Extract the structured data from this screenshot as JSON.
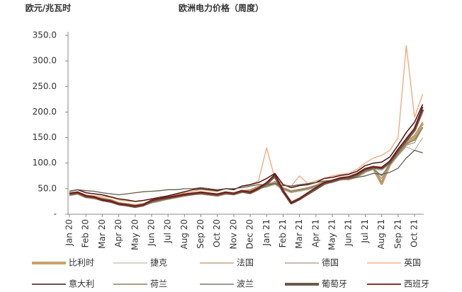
{
  "chart_data": {
    "type": "line",
    "title": "欧洲电力价格（周度）",
    "y_label": "欧元/兆瓦时",
    "categories": [
      "Jan 20",
      null,
      "Feb 20",
      null,
      "Mar 20",
      null,
      "Apr 20",
      null,
      "May 20",
      null,
      "Jun 20",
      null,
      "Jul 20",
      null,
      "Aug 20",
      null,
      "Sep 20",
      null,
      "Oct 20",
      null,
      "Nov 20",
      null,
      "Dec 20",
      null,
      "Jan 21",
      null,
      "Feb 21",
      null,
      "Mar 21",
      null,
      "Apr 21",
      null,
      "May 21",
      null,
      "Jun 21",
      null,
      "Jul 21",
      null,
      "Aug 21",
      null,
      "Sep 21",
      null,
      "Oct 21",
      null
    ],
    "ylim": [
      0,
      350
    ],
    "yticks": [
      {
        "value": 0,
        "label": "-"
      },
      {
        "value": 50,
        "label": "50.0"
      },
      {
        "value": 100,
        "label": "100.0"
      },
      {
        "value": 150,
        "label": "150.0"
      },
      {
        "value": 200,
        "label": "200.0"
      },
      {
        "value": 250,
        "label": "250.0"
      },
      {
        "value": 300,
        "label": "300.0"
      },
      {
        "value": 350,
        "label": "350.0"
      }
    ],
    "grid": false,
    "legend": "bottom",
    "series": [
      {
        "name": "比利时",
        "color": "#c9a26a",
        "width": 4,
        "values": [
          38,
          41,
          34,
          32,
          30,
          27,
          21,
          19,
          17,
          19,
          24,
          28,
          31,
          34,
          37,
          40,
          41,
          39,
          37,
          41,
          40,
          44,
          46,
          52,
          56,
          62,
          50,
          44,
          47,
          50,
          54,
          61,
          64,
          70,
          69,
          74,
          84,
          90,
          60,
          98,
          118,
          138,
          150,
          178
        ]
      },
      {
        "name": "捷克",
        "color": "#bdbdae",
        "width": 1.3,
        "values": [
          36,
          40,
          33,
          31,
          28,
          26,
          20,
          18,
          16,
          18,
          23,
          26,
          30,
          33,
          36,
          39,
          40,
          38,
          36,
          40,
          38,
          43,
          44,
          50,
          53,
          58,
          48,
          43,
          46,
          48,
          53,
          60,
          62,
          68,
          68,
          73,
          82,
          88,
          86,
          97,
          115,
          132,
          125,
          150
        ]
      },
      {
        "name": "法国",
        "color": "#b8906e",
        "width": 1.3,
        "values": [
          40,
          43,
          36,
          34,
          31,
          29,
          22,
          20,
          17,
          20,
          26,
          29,
          33,
          36,
          39,
          42,
          43,
          41,
          39,
          43,
          41,
          46,
          48,
          55,
          58,
          64,
          52,
          46,
          49,
          52,
          57,
          64,
          67,
          72,
          72,
          77,
          87,
          92,
          60,
          102,
          122,
          142,
          155,
          180
        ]
      },
      {
        "name": "德国",
        "color": "#a59586",
        "width": 1.3,
        "values": [
          37,
          40,
          33,
          31,
          28,
          26,
          19,
          17,
          15,
          17,
          22,
          25,
          30,
          33,
          36,
          38,
          40,
          38,
          36,
          40,
          39,
          44,
          45,
          50,
          54,
          60,
          50,
          45,
          47,
          50,
          54,
          60,
          62,
          67,
          68,
          73,
          82,
          88,
          70,
          95,
          115,
          135,
          140,
          170
        ]
      },
      {
        "name": "英国",
        "color": "#f2a673",
        "width": 1.3,
        "values": [
          40,
          44,
          38,
          36,
          35,
          33,
          28,
          26,
          25,
          27,
          30,
          33,
          35,
          38,
          42,
          45,
          48,
          46,
          44,
          50,
          48,
          55,
          58,
          65,
          130,
          70,
          58,
          55,
          75,
          60,
          65,
          70,
          75,
          78,
          80,
          88,
          100,
          110,
          115,
          125,
          150,
          330,
          190,
          235
        ]
      },
      {
        "name": "意大利",
        "color": "#4a1414",
        "width": 1.5,
        "values": [
          45,
          48,
          42,
          40,
          38,
          34,
          30,
          28,
          25,
          27,
          30,
          33,
          36,
          40,
          44,
          48,
          50,
          48,
          46,
          50,
          48,
          55,
          58,
          62,
          70,
          80,
          58,
          52,
          56,
          58,
          62,
          70,
          72,
          76,
          78,
          84,
          95,
          100,
          102,
          112,
          135,
          160,
          180,
          215
        ]
      },
      {
        "name": "荷兰",
        "color": "#84845a",
        "width": 1.5,
        "values": [
          38,
          41,
          34,
          32,
          30,
          27,
          21,
          19,
          17,
          19,
          24,
          27,
          31,
          34,
          37,
          40,
          41,
          39,
          37,
          41,
          40,
          44,
          45,
          51,
          55,
          60,
          50,
          44,
          47,
          50,
          55,
          62,
          64,
          70,
          69,
          74,
          84,
          89,
          75,
          98,
          118,
          138,
          145,
          170
        ]
      },
      {
        "name": "波兰",
        "color": "#5f5f52",
        "width": 1.3,
        "values": [
          45,
          48,
          46,
          45,
          42,
          40,
          38,
          40,
          42,
          44,
          45,
          46,
          48,
          48,
          50,
          50,
          52,
          50,
          48,
          50,
          50,
          52,
          55,
          58,
          58,
          60,
          56,
          55,
          58,
          60,
          62,
          65,
          66,
          68,
          70,
          72,
          75,
          80,
          78,
          82,
          90,
          110,
          125,
          120
        ]
      },
      {
        "name": "葡萄牙",
        "color": "#6b5a48",
        "width": 4,
        "values": [
          40,
          42,
          35,
          33,
          28,
          25,
          20,
          18,
          15,
          18,
          26,
          30,
          32,
          35,
          38,
          40,
          42,
          40,
          38,
          42,
          40,
          45,
          42,
          50,
          60,
          75,
          45,
          22,
          30,
          40,
          50,
          60,
          65,
          70,
          72,
          78,
          88,
          92,
          90,
          102,
          125,
          145,
          165,
          205
        ]
      },
      {
        "name": "西班牙",
        "color": "#7d1515",
        "width": 1.8,
        "values": [
          41,
          43,
          36,
          34,
          28,
          26,
          20,
          18,
          16,
          19,
          27,
          31,
          33,
          36,
          39,
          41,
          43,
          41,
          39,
          43,
          41,
          46,
          43,
          51,
          62,
          78,
          46,
          22,
          30,
          42,
          52,
          62,
          66,
          71,
          73,
          79,
          89,
          93,
          91,
          104,
          127,
          148,
          168,
          210
        ]
      }
    ]
  }
}
